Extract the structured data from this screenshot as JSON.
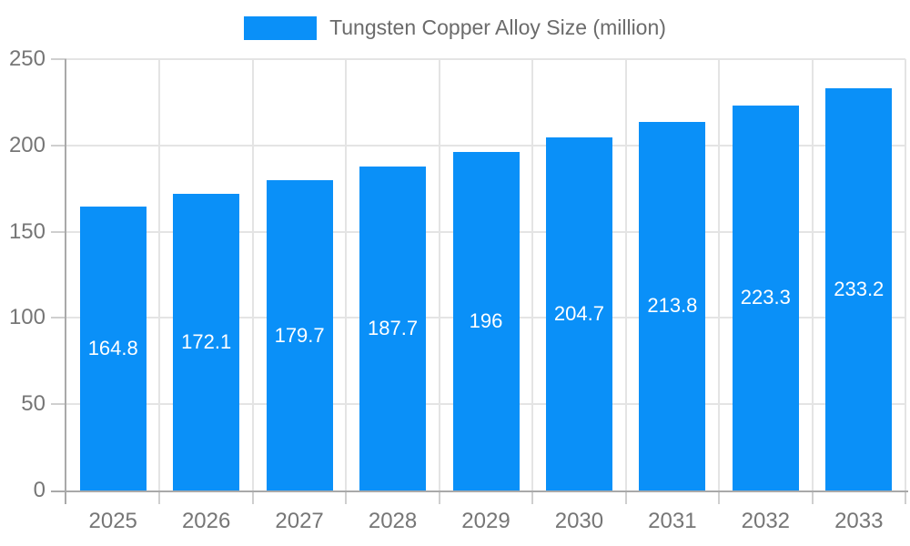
{
  "legend": {
    "items": [
      {
        "label": "Tungsten Copper Alloy Size (million)",
        "color": "#0a90f8"
      }
    ]
  },
  "colors": {
    "bar": "#0a90f8",
    "bar_label": "#ffffff",
    "axis": "#a9a9a9",
    "gridline": "#e4e4e4",
    "tick": "#cfcfcf",
    "axis_label": "#767676",
    "legend_label": "#6b6b6b",
    "background": "#ffffff"
  },
  "chart_data": {
    "type": "bar",
    "title": "",
    "xlabel": "",
    "ylabel": "",
    "series_name": "Tungsten Copper Alloy Size (million)",
    "categories": [
      "2025",
      "2026",
      "2027",
      "2028",
      "2029",
      "2030",
      "2031",
      "2032",
      "2033"
    ],
    "values": [
      164.8,
      172.1,
      179.7,
      187.7,
      196,
      204.7,
      213.8,
      223.3,
      233.2
    ],
    "value_labels": [
      "164.8",
      "172.1",
      "179.7",
      "187.7",
      "196",
      "204.7",
      "213.8",
      "223.3",
      "233.2"
    ],
    "ylim": [
      0,
      250
    ],
    "yticks": [
      0,
      50,
      100,
      150,
      200,
      250
    ],
    "grid": true,
    "grid_vertical": true,
    "legend_position": "top",
    "bar_labels_inside": true
  }
}
